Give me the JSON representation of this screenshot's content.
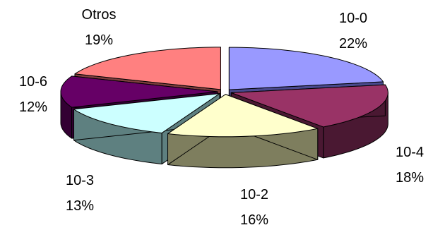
{
  "chart_data": {
    "type": "pie",
    "style": "3d-exploded",
    "categories": [
      "10-0",
      "10-4",
      "10-2",
      "10-3",
      "10-6",
      "Otros"
    ],
    "values": [
      22,
      18,
      16,
      13,
      12,
      19
    ],
    "value_labels": [
      "22%",
      "18%",
      "16%",
      "13%",
      "12%",
      "19%"
    ],
    "colors": [
      "#9999FF",
      "#993366",
      "#FFFFCC",
      "#CCFFFF",
      "#660066",
      "#FF8080"
    ],
    "side_colors": [
      "#4A4A8E",
      "#4A1832",
      "#7E7E5E",
      "#5E8080",
      "#330033",
      "#7E3E3E"
    ],
    "title": "",
    "legend": "none"
  }
}
